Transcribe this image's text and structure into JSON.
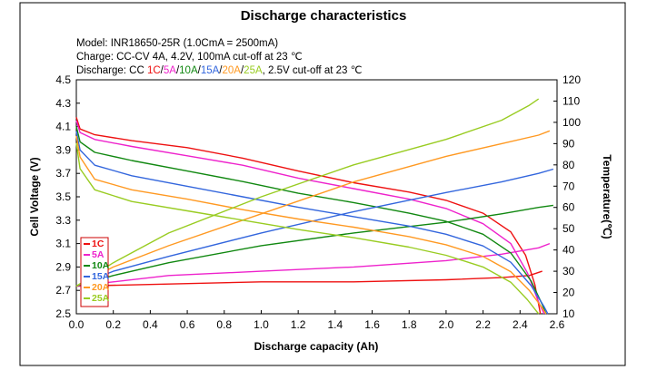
{
  "chart_data": {
    "type": "line",
    "title": "Discharge characteristics",
    "notes": {
      "model": "Model: INR18650-25R (1.0CmA = 2500mA)",
      "charge": "Charge: CC-CV 4A, 4.2V, 100mA cut-off at 23 ℃",
      "discharge_prefix": "Discharge: CC ",
      "discharge_suffix": ", 2.5V cut-off at 23 ℃",
      "rate_tokens": [
        "1C",
        "5A",
        "10A",
        "15A",
        "20A",
        "25A"
      ]
    },
    "xlabel": "Discharge capacity (Ah)",
    "ylabel": "Cell Voltage (V)",
    "y2label": "Temperature(℃)",
    "xlim": [
      0.0,
      2.6
    ],
    "ylim": [
      2.5,
      4.5
    ],
    "y2lim": [
      10,
      120
    ],
    "x_ticks": [
      "0.0",
      "0.2",
      "0.4",
      "0.6",
      "0.8",
      "1.0",
      "1.2",
      "1.4",
      "1.6",
      "1.8",
      "2.0",
      "2.2",
      "2.4",
      "2.6"
    ],
    "y_ticks": [
      "2.5",
      "2.7",
      "2.9",
      "3.1",
      "3.3",
      "3.5",
      "3.7",
      "3.9",
      "4.1",
      "4.3",
      "4.5"
    ],
    "y2_ticks": [
      "10",
      "20",
      "30",
      "40",
      "50",
      "60",
      "70",
      "80",
      "90",
      "100",
      "110",
      "120"
    ],
    "grid": false,
    "legend_position": "bottom-left",
    "series": [
      {
        "name": "1C",
        "color": "#ee1111",
        "voltage": [
          [
            0.0,
            4.18
          ],
          [
            0.02,
            4.08
          ],
          [
            0.1,
            4.03
          ],
          [
            0.3,
            3.98
          ],
          [
            0.6,
            3.92
          ],
          [
            0.9,
            3.83
          ],
          [
            1.2,
            3.72
          ],
          [
            1.5,
            3.62
          ],
          [
            1.8,
            3.54
          ],
          [
            2.0,
            3.47
          ],
          [
            2.2,
            3.36
          ],
          [
            2.35,
            3.2
          ],
          [
            2.43,
            3.0
          ],
          [
            2.48,
            2.75
          ],
          [
            2.51,
            2.5
          ]
        ],
        "temperature": [
          [
            0.0,
            23
          ],
          [
            0.5,
            24
          ],
          [
            1.0,
            25
          ],
          [
            1.5,
            25
          ],
          [
            2.0,
            26
          ],
          [
            2.3,
            27
          ],
          [
            2.45,
            28
          ],
          [
            2.52,
            30
          ]
        ]
      },
      {
        "name": "5A",
        "color": "#ee22cc",
        "voltage": [
          [
            0.0,
            4.15
          ],
          [
            0.02,
            4.05
          ],
          [
            0.1,
            3.99
          ],
          [
            0.3,
            3.93
          ],
          [
            0.6,
            3.85
          ],
          [
            0.9,
            3.77
          ],
          [
            1.2,
            3.66
          ],
          [
            1.5,
            3.57
          ],
          [
            1.8,
            3.48
          ],
          [
            2.0,
            3.4
          ],
          [
            2.2,
            3.27
          ],
          [
            2.35,
            3.1
          ],
          [
            2.44,
            2.85
          ],
          [
            2.5,
            2.6
          ],
          [
            2.53,
            2.5
          ]
        ],
        "temperature": [
          [
            0.0,
            23
          ],
          [
            0.2,
            25
          ],
          [
            0.5,
            28
          ],
          [
            1.0,
            30
          ],
          [
            1.5,
            32
          ],
          [
            2.0,
            35
          ],
          [
            2.3,
            38
          ],
          [
            2.5,
            41
          ],
          [
            2.56,
            43
          ]
        ]
      },
      {
        "name": "10A",
        "color": "#118811",
        "voltage": [
          [
            0.0,
            4.1
          ],
          [
            0.02,
            3.97
          ],
          [
            0.1,
            3.88
          ],
          [
            0.3,
            3.81
          ],
          [
            0.6,
            3.72
          ],
          [
            0.9,
            3.63
          ],
          [
            1.2,
            3.53
          ],
          [
            1.5,
            3.45
          ],
          [
            1.8,
            3.36
          ],
          [
            2.0,
            3.29
          ],
          [
            2.2,
            3.18
          ],
          [
            2.35,
            3.02
          ],
          [
            2.46,
            2.78
          ],
          [
            2.52,
            2.58
          ],
          [
            2.54,
            2.5
          ]
        ],
        "temperature": [
          [
            0.0,
            23
          ],
          [
            0.2,
            28
          ],
          [
            0.5,
            34
          ],
          [
            1.0,
            42
          ],
          [
            1.5,
            48
          ],
          [
            2.0,
            53
          ],
          [
            2.3,
            57
          ],
          [
            2.5,
            60
          ],
          [
            2.58,
            61
          ]
        ]
      },
      {
        "name": "15A",
        "color": "#3366dd",
        "voltage": [
          [
            0.0,
            4.06
          ],
          [
            0.02,
            3.9
          ],
          [
            0.1,
            3.77
          ],
          [
            0.3,
            3.68
          ],
          [
            0.6,
            3.59
          ],
          [
            0.9,
            3.5
          ],
          [
            1.2,
            3.41
          ],
          [
            1.5,
            3.33
          ],
          [
            1.8,
            3.25
          ],
          [
            2.0,
            3.18
          ],
          [
            2.2,
            3.08
          ],
          [
            2.35,
            2.94
          ],
          [
            2.46,
            2.74
          ],
          [
            2.53,
            2.56
          ],
          [
            2.55,
            2.5
          ]
        ],
        "temperature": [
          [
            0.0,
            23
          ],
          [
            0.2,
            30
          ],
          [
            0.5,
            37
          ],
          [
            1.0,
            48
          ],
          [
            1.5,
            58
          ],
          [
            2.0,
            67
          ],
          [
            2.3,
            72
          ],
          [
            2.5,
            76
          ],
          [
            2.58,
            78
          ]
        ]
      },
      {
        "name": "20A",
        "color": "#ff9922",
        "voltage": [
          [
            0.0,
            4.02
          ],
          [
            0.02,
            3.84
          ],
          [
            0.1,
            3.65
          ],
          [
            0.3,
            3.56
          ],
          [
            0.6,
            3.48
          ],
          [
            0.9,
            3.39
          ],
          [
            1.2,
            3.31
          ],
          [
            1.5,
            3.24
          ],
          [
            1.8,
            3.16
          ],
          [
            2.0,
            3.09
          ],
          [
            2.2,
            2.99
          ],
          [
            2.35,
            2.86
          ],
          [
            2.45,
            2.7
          ],
          [
            2.52,
            2.55
          ],
          [
            2.54,
            2.5
          ]
        ],
        "temperature": [
          [
            0.0,
            23
          ],
          [
            0.2,
            32
          ],
          [
            0.5,
            42
          ],
          [
            1.0,
            57
          ],
          [
            1.5,
            72
          ],
          [
            2.0,
            84
          ],
          [
            2.3,
            90
          ],
          [
            2.5,
            94
          ],
          [
            2.56,
            96
          ]
        ]
      },
      {
        "name": "25A",
        "color": "#99cc22",
        "voltage": [
          [
            0.0,
            3.96
          ],
          [
            0.02,
            3.74
          ],
          [
            0.1,
            3.56
          ],
          [
            0.3,
            3.46
          ],
          [
            0.6,
            3.38
          ],
          [
            0.9,
            3.3
          ],
          [
            1.2,
            3.22
          ],
          [
            1.5,
            3.15
          ],
          [
            1.8,
            3.07
          ],
          [
            2.0,
            3.0
          ],
          [
            2.2,
            2.9
          ],
          [
            2.35,
            2.77
          ],
          [
            2.44,
            2.62
          ],
          [
            2.49,
            2.52
          ],
          [
            2.5,
            2.5
          ]
        ],
        "temperature": [
          [
            0.0,
            23
          ],
          [
            0.2,
            34
          ],
          [
            0.5,
            48
          ],
          [
            1.0,
            65
          ],
          [
            1.5,
            80
          ],
          [
            2.0,
            92
          ],
          [
            2.3,
            101
          ],
          [
            2.45,
            108
          ],
          [
            2.5,
            111
          ]
        ]
      }
    ]
  }
}
